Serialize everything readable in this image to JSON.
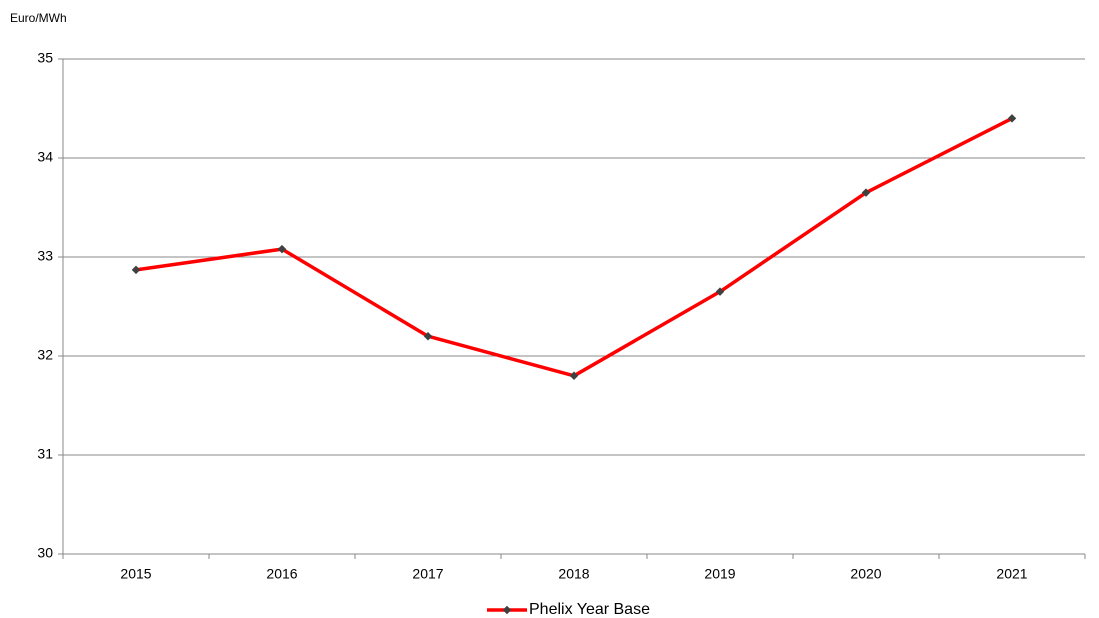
{
  "chart_data": {
    "type": "line",
    "y_label": "Euro/MWh",
    "categories": [
      "2015",
      "2016",
      "2017",
      "2018",
      "2019",
      "2020",
      "2021"
    ],
    "series": [
      {
        "name": "Phelix Year Base",
        "color": "#ff0000",
        "marker_color": "#404040",
        "values": [
          32.87,
          33.08,
          32.2,
          31.8,
          32.65,
          33.65,
          34.4
        ]
      }
    ],
    "ylim": [
      30,
      35
    ],
    "yticks": [
      30,
      31,
      32,
      33,
      34,
      35
    ],
    "grid": true,
    "legend": "bottom"
  }
}
